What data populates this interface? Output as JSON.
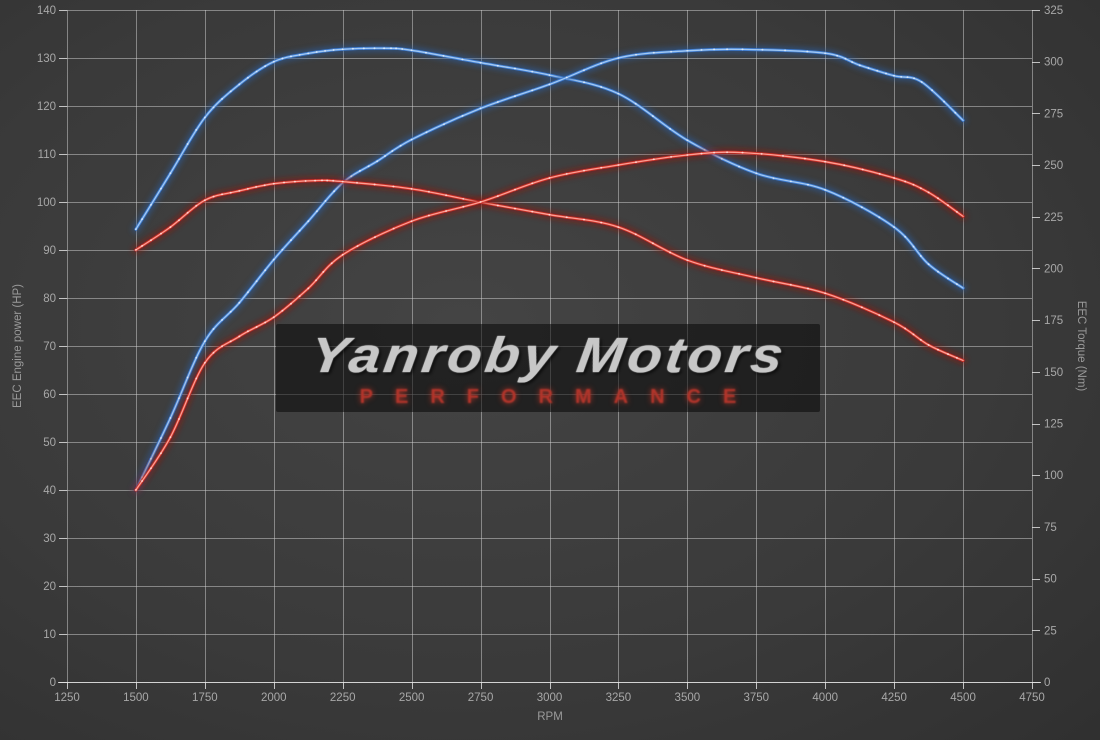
{
  "watermark": {
    "brand": "Yanroby Motors",
    "tagline": "PERFORMANCE"
  },
  "chart_data": {
    "type": "line",
    "title": "",
    "grid": "on",
    "legend": "none",
    "x_axis": {
      "label": "RPM",
      "min": 1250,
      "max": 4750,
      "tick_step": 250,
      "ticks": [
        1250,
        1500,
        1750,
        2000,
        2250,
        2500,
        2750,
        3000,
        3250,
        3500,
        3750,
        4000,
        4250,
        4500,
        4750
      ]
    },
    "y_left": {
      "label": "EEC Engine power (HP)",
      "min": 0,
      "max": 140,
      "tick_step": 10,
      "ticks": [
        0,
        10,
        20,
        30,
        40,
        50,
        60,
        70,
        80,
        90,
        100,
        110,
        120,
        130,
        140
      ]
    },
    "y_right": {
      "label": "EEC Torque (Nm)",
      "min": 0,
      "max": 325,
      "tick_step": 25,
      "ticks": [
        0,
        25,
        50,
        75,
        100,
        125,
        150,
        175,
        200,
        225,
        250,
        275,
        300,
        325
      ]
    },
    "series": [
      {
        "name": "blue-torque",
        "axis": "right",
        "unit": "Nm",
        "color": "#3f7fd9",
        "core": "#a9cdf3",
        "glow": "#2b5da0",
        "peak": 306.5,
        "points": [
          [
            1500,
            219
          ],
          [
            1625,
            246
          ],
          [
            1750,
            273
          ],
          [
            1875,
            289
          ],
          [
            2000,
            300
          ],
          [
            2125,
            304
          ],
          [
            2250,
            306
          ],
          [
            2400,
            306.5
          ],
          [
            2500,
            305.5
          ],
          [
            2750,
            299.5
          ],
          [
            3000,
            293.5
          ],
          [
            3250,
            284.5
          ],
          [
            3500,
            262
          ],
          [
            3750,
            246
          ],
          [
            4000,
            238
          ],
          [
            4250,
            220
          ],
          [
            4375,
            202
          ],
          [
            4500,
            190.5
          ]
        ]
      },
      {
        "name": "blue-power",
        "axis": "left",
        "unit": "HP",
        "color": "#3f7fd9",
        "core": "#a9cdf3",
        "glow": "#2b5da0",
        "peak": 131.8,
        "points": [
          [
            1500,
            40
          ],
          [
            1625,
            55
          ],
          [
            1750,
            71
          ],
          [
            1875,
            79
          ],
          [
            2000,
            88
          ],
          [
            2125,
            96
          ],
          [
            2250,
            104
          ],
          [
            2375,
            108.5
          ],
          [
            2500,
            113
          ],
          [
            2750,
            119.5
          ],
          [
            3000,
            124.5
          ],
          [
            3250,
            130
          ],
          [
            3500,
            131.5
          ],
          [
            3700,
            131.8
          ],
          [
            4000,
            131
          ],
          [
            4125,
            128.5
          ],
          [
            4250,
            126.3
          ],
          [
            4350,
            125
          ],
          [
            4500,
            117
          ]
        ]
      },
      {
        "name": "red-torque",
        "axis": "right",
        "unit": "Nm",
        "color": "#cf2d24",
        "core": "#ffa49a",
        "glow": "#8e1711",
        "peak": 242.5,
        "points": [
          [
            1500,
            209
          ],
          [
            1625,
            220
          ],
          [
            1750,
            233
          ],
          [
            1875,
            237.5
          ],
          [
            2000,
            241
          ],
          [
            2150,
            242.5
          ],
          [
            2250,
            242
          ],
          [
            2500,
            238.5
          ],
          [
            2750,
            232
          ],
          [
            3000,
            226
          ],
          [
            3250,
            220
          ],
          [
            3500,
            204
          ],
          [
            3750,
            195.5
          ],
          [
            4000,
            188
          ],
          [
            4250,
            174
          ],
          [
            4375,
            163
          ],
          [
            4500,
            155.5
          ]
        ]
      },
      {
        "name": "red-power",
        "axis": "left",
        "unit": "HP",
        "color": "#cf2d24",
        "core": "#ffa49a",
        "glow": "#8e1711",
        "peak": 110.3,
        "points": [
          [
            1500,
            40
          ],
          [
            1625,
            51
          ],
          [
            1750,
            66.5
          ],
          [
            1875,
            72
          ],
          [
            2000,
            76
          ],
          [
            2125,
            82
          ],
          [
            2250,
            89
          ],
          [
            2500,
            96
          ],
          [
            2750,
            100
          ],
          [
            3000,
            105
          ],
          [
            3250,
            107.7
          ],
          [
            3500,
            109.8
          ],
          [
            3700,
            110.3
          ],
          [
            4000,
            108.4
          ],
          [
            4250,
            105
          ],
          [
            4375,
            102
          ],
          [
            4500,
            97
          ]
        ]
      }
    ],
    "style": {
      "grid_color": "rgba(210,210,210,0.5)",
      "axis_line_color": "rgba(230,230,230,0.8)",
      "tick_label_color": "#a8a8a8",
      "axis_title_color": "#9a9a9a",
      "marker_color": "rgba(255,255,255,0.55)"
    }
  }
}
